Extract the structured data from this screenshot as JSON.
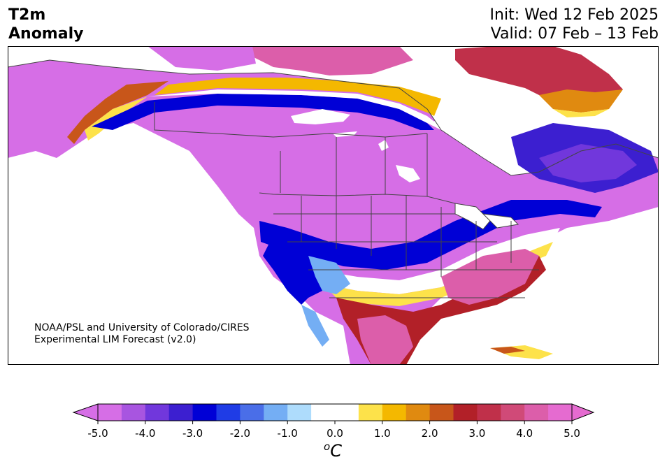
{
  "header": {
    "title_line1": "T2m",
    "title_line2": "Anomaly",
    "init": "Init: Wed 12 Feb 2025",
    "valid": "Valid: 07 Feb – 13 Feb"
  },
  "credit": {
    "line1": "NOAA/PSL and University of Colorado/CIRES",
    "line2": "Experimental LIM Forecast (v2.0)"
  },
  "colorbar": {
    "ticks": [
      "-5.0",
      "-4.0",
      "-3.0",
      "-2.0",
      "-1.0",
      "0.0",
      "1.0",
      "2.0",
      "3.0",
      "4.0",
      "5.0"
    ],
    "unit_sup": "o",
    "unit_main": "C",
    "colors": [
      "#d66ee6",
      "#a855e0",
      "#7137dc",
      "#3c1fd0",
      "#0000d6",
      "#1f3ce6",
      "#4a6ee8",
      "#74aef4",
      "#aedcfc",
      "#ffffff",
      "#ffffff",
      "#fde24a",
      "#f4b800",
      "#e08a10",
      "#c8561a",
      "#b22028",
      "#c0304a",
      "#d04a78",
      "#dc5eaa",
      "#e56bd0"
    ]
  },
  "map_colors": {
    "strong_cold": "#d66ee6",
    "cold_mid": "#7137dc",
    "cold_deep": "#0000d6",
    "cold_light": "#74aef4",
    "neutral": "#ffffff",
    "warm_light": "#fde24a",
    "warm_mid": "#e08a10",
    "warm_red": "#b22028",
    "warm_pink": "#dc5eaa"
  }
}
